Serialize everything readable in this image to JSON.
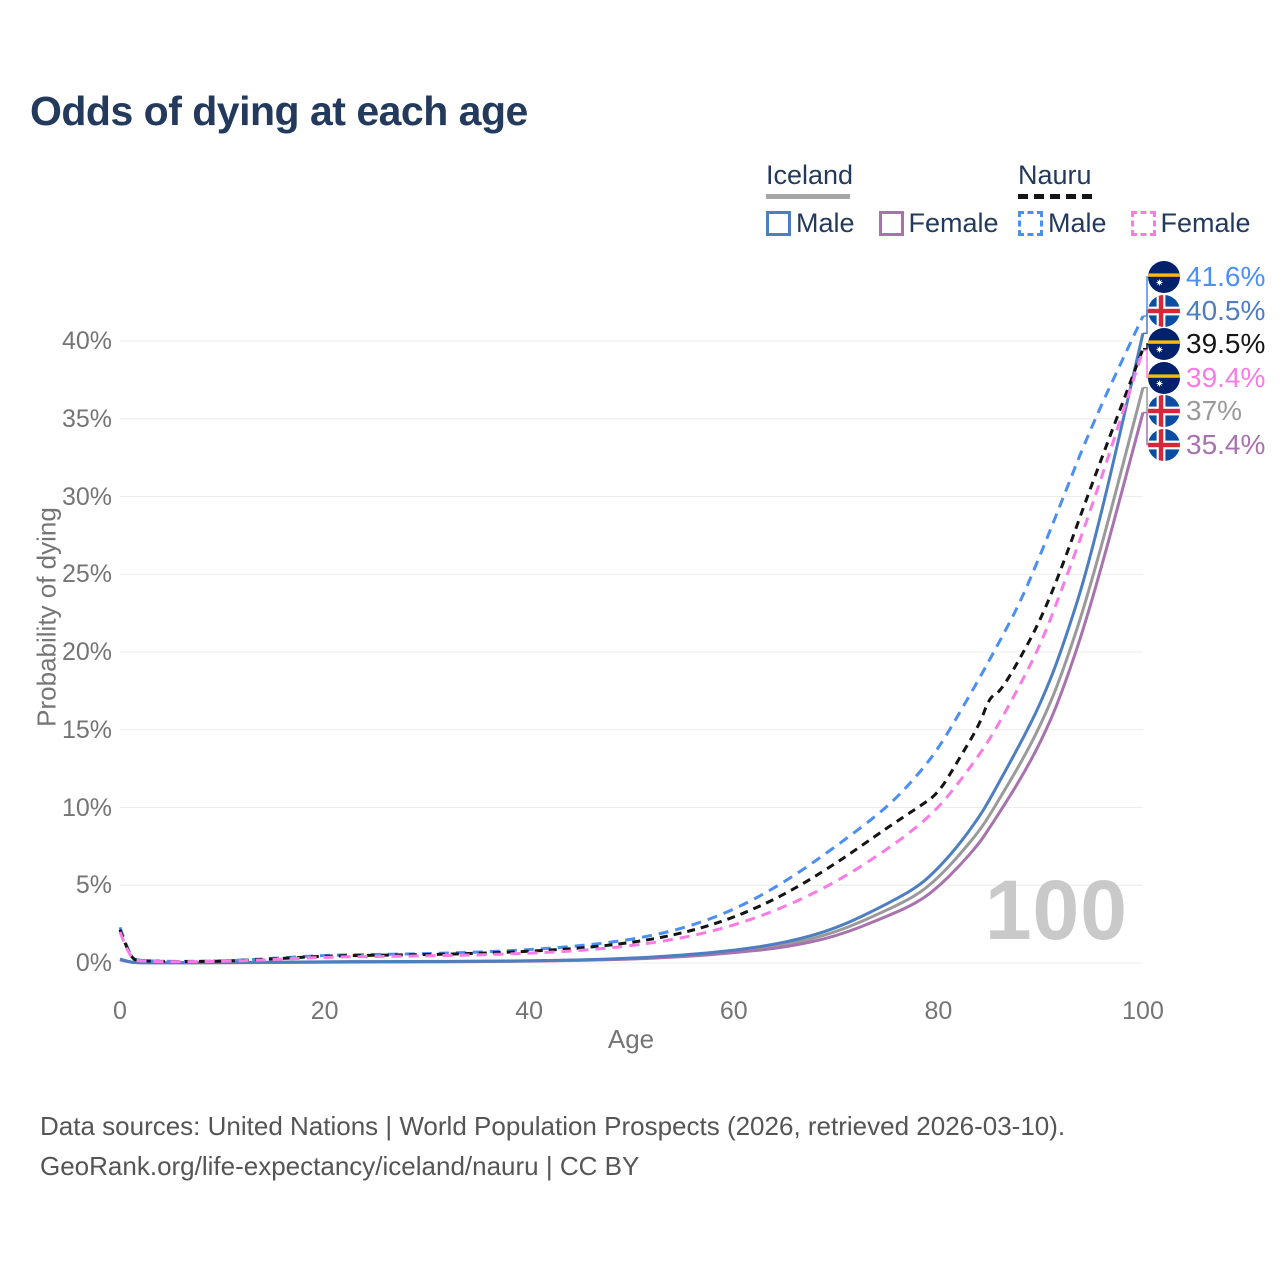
{
  "title": "Odds of dying at each age",
  "watermark": "100",
  "source": {
    "line1": "Data sources: United Nations | World Population Prospects (2026, retrieved 2026-03-10).",
    "line2": "GeoRank.org/life-expectancy/iceland/nauru | CC BY"
  },
  "legend": {
    "groups": [
      {
        "label": "Iceland",
        "line_color": "#a6a6a6",
        "line_style": "solid",
        "items": [
          {
            "label": "Male",
            "series": "iceland_male"
          },
          {
            "label": "Female",
            "series": "iceland_female"
          }
        ]
      },
      {
        "label": "Nauru",
        "line_color": "#141414",
        "line_style": "dashed",
        "items": [
          {
            "label": "Male",
            "series": "nauru_male"
          },
          {
            "label": "Female",
            "series": "nauru_female"
          }
        ]
      }
    ]
  },
  "chart_data": {
    "type": "line",
    "title": "Odds of dying at each age",
    "xlabel": "Age",
    "ylabel": "Probability of dying",
    "xlim": [
      0,
      100
    ],
    "ylim_percent": [
      0,
      44
    ],
    "grid": "horizontal",
    "legend_position": "top-right",
    "yticks": {
      "values": [
        0,
        5,
        10,
        15,
        20,
        25,
        30,
        35,
        40
      ],
      "labels": [
        "0%",
        "5%",
        "10%",
        "15%",
        "20%",
        "25%",
        "30%",
        "35%",
        "40%"
      ]
    },
    "xticks": {
      "values": [
        0,
        20,
        40,
        60,
        80,
        100
      ],
      "labels": [
        "0",
        "20",
        "40",
        "60",
        "80",
        "100"
      ]
    },
    "x": [
      0,
      1,
      2,
      5,
      10,
      15,
      20,
      25,
      30,
      35,
      40,
      45,
      50,
      55,
      60,
      65,
      70,
      75,
      78,
      80,
      82,
      84,
      85,
      86,
      88,
      90,
      92,
      95,
      100
    ],
    "series": [
      {
        "id": "iceland_both",
        "name": "Iceland",
        "country": "Iceland",
        "sex": "Both",
        "flag": "iceland",
        "color": "#9a9a9a",
        "dashed": false,
        "end_value": 37.0,
        "end_label": "37%",
        "values": [
          0.22,
          0.05,
          0.02,
          0.01,
          0.02,
          0.04,
          0.07,
          0.08,
          0.09,
          0.1,
          0.13,
          0.18,
          0.28,
          0.45,
          0.72,
          1.15,
          1.95,
          3.4,
          4.4,
          5.5,
          6.9,
          8.5,
          9.5,
          10.6,
          12.8,
          15.3,
          18.4,
          24.4,
          37.0
        ]
      },
      {
        "id": "iceland_female",
        "name": "Iceland Female",
        "country": "Iceland",
        "sex": "Female",
        "flag": "iceland",
        "color": "#a872ae",
        "dashed": false,
        "end_value": 35.4,
        "end_label": "35.4%",
        "values": [
          0.2,
          0.04,
          0.02,
          0.01,
          0.02,
          0.03,
          0.05,
          0.06,
          0.07,
          0.09,
          0.12,
          0.17,
          0.25,
          0.4,
          0.65,
          1.0,
          1.7,
          3.0,
          3.9,
          4.9,
          6.2,
          7.7,
          8.7,
          9.7,
          11.8,
          14.2,
          17.2,
          23.1,
          35.4
        ]
      },
      {
        "id": "iceland_male",
        "name": "Iceland Male",
        "country": "Iceland",
        "sex": "Male",
        "flag": "iceland",
        "color": "#4d7ec0",
        "dashed": false,
        "end_value": 40.5,
        "end_label": "40.5%",
        "values": [
          0.25,
          0.05,
          0.02,
          0.01,
          0.02,
          0.05,
          0.08,
          0.09,
          0.1,
          0.11,
          0.14,
          0.2,
          0.3,
          0.5,
          0.8,
          1.3,
          2.2,
          3.8,
          4.9,
          6.1,
          7.6,
          9.4,
          10.5,
          11.7,
          14.1,
          16.7,
          20.0,
          26.2,
          40.5
        ]
      },
      {
        "id": "nauru_male",
        "name": "Nauru Male",
        "country": "Nauru",
        "sex": "Male",
        "flag": "nauru",
        "color": "#4c8ff2",
        "dashed": true,
        "end_value": 41.6,
        "end_label": "41.6%",
        "values": [
          2.3,
          0.3,
          0.15,
          0.1,
          0.12,
          0.3,
          0.5,
          0.55,
          0.6,
          0.7,
          0.85,
          1.1,
          1.5,
          2.2,
          3.4,
          5.2,
          7.5,
          10.0,
          12.1,
          13.8,
          16.0,
          18.3,
          19.5,
          20.7,
          23.2,
          26.3,
          29.6,
          34.6,
          41.6
        ]
      },
      {
        "id": "nauru_both",
        "name": "Nauru",
        "country": "Nauru",
        "sex": "Both",
        "flag": "nauru",
        "color": "#141414",
        "dashed": true,
        "end_value": 39.5,
        "end_label": "39.5%",
        "values": [
          2.15,
          0.28,
          0.14,
          0.09,
          0.11,
          0.26,
          0.45,
          0.5,
          0.54,
          0.62,
          0.75,
          0.95,
          1.3,
          1.9,
          2.9,
          4.4,
          6.4,
          8.7,
          10.0,
          10.9,
          13.1,
          15.3,
          17.1,
          17.4,
          19.6,
          22.1,
          25.3,
          30.8,
          39.5
        ]
      },
      {
        "id": "nauru_female",
        "name": "Nauru Female",
        "country": "Nauru",
        "sex": "Female",
        "flag": "nauru",
        "color": "#f87be6",
        "dashed": true,
        "end_value": 39.4,
        "end_label": "39.4%",
        "values": [
          2.0,
          0.25,
          0.12,
          0.08,
          0.1,
          0.22,
          0.38,
          0.42,
          0.46,
          0.52,
          0.62,
          0.8,
          1.1,
          1.6,
          2.4,
          3.6,
          5.2,
          7.3,
          8.8,
          10.0,
          11.6,
          13.4,
          14.4,
          15.5,
          17.9,
          20.5,
          23.9,
          29.3,
          39.4
        ]
      }
    ]
  },
  "colors": {
    "title_text": "#233a5c",
    "axis_text": "#757575",
    "gridline": "#ececec",
    "watermark": "#c9c9c9",
    "source_text": "#555555",
    "iceland_male": "#4d7ec0",
    "iceland_female": "#a872ae",
    "iceland_both": "#9a9a9a",
    "nauru_male": "#4c8ff2",
    "nauru_female": "#f87be6",
    "nauru_both": "#141414"
  }
}
